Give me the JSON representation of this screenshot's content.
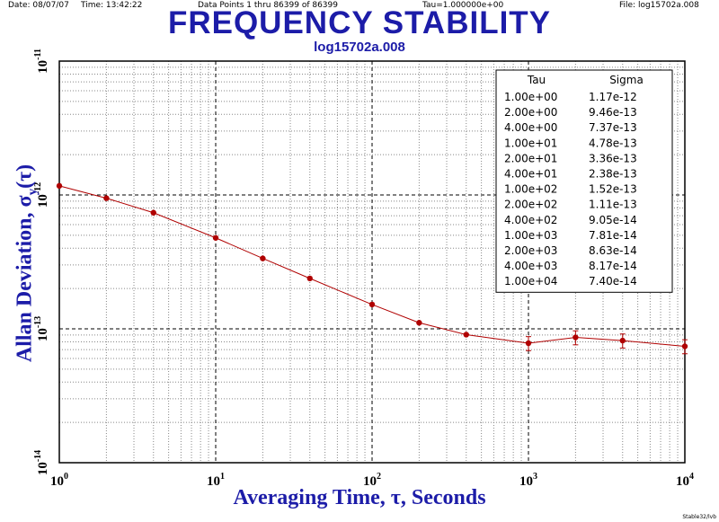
{
  "header": {
    "date": "Date: 08/07/07",
    "time": "Time: 13:42:22",
    "points": "Data Points 1 thru 86399 of 86399",
    "tau": "Tau=1.000000e+00",
    "file": "File: log15702a.008"
  },
  "footer": "Stable32/lvb",
  "chart_data": {
    "type": "scatter",
    "title": "FREQUENCY STABILITY",
    "subtitle": "log15702a.008",
    "xlabel": "Averaging Time, τ, Seconds",
    "ylabel": "Allan Deviation, σ",
    "ylabel_sub": "y",
    "ylabel_tail": "(τ)",
    "x_scale": "log",
    "y_scale": "log",
    "xlim": [
      1,
      10000
    ],
    "ylim": [
      1e-14,
      1e-11
    ],
    "grid": true,
    "legend_position": "top-right",
    "x_ticks": [
      {
        "base": "10",
        "exp": "0"
      },
      {
        "base": "10",
        "exp": "1"
      },
      {
        "base": "10",
        "exp": "2"
      },
      {
        "base": "10",
        "exp": "3"
      },
      {
        "base": "10",
        "exp": "4"
      }
    ],
    "y_ticks": [
      {
        "base": "10",
        "exp": "-14"
      },
      {
        "base": "10",
        "exp": "-13"
      },
      {
        "base": "10",
        "exp": "-12"
      },
      {
        "base": "10",
        "exp": "-11"
      }
    ],
    "series": [
      {
        "color": "#b00000",
        "x": [
          1,
          2,
          4,
          10,
          20,
          40,
          100,
          200,
          400,
          1000,
          2000,
          4000,
          10000
        ],
        "y": [
          1.17e-12,
          9.46e-13,
          7.37e-13,
          4.78e-13,
          3.36e-13,
          2.38e-13,
          1.52e-13,
          1.11e-13,
          9.05e-14,
          7.81e-14,
          8.63e-14,
          8.17e-14,
          7.4e-14
        ]
      }
    ],
    "table": {
      "headers": [
        "Tau",
        "Sigma"
      ],
      "rows": [
        [
          "1.00e+00",
          "1.17e-12"
        ],
        [
          "2.00e+00",
          "9.46e-13"
        ],
        [
          "4.00e+00",
          "7.37e-13"
        ],
        [
          "1.00e+01",
          "4.78e-13"
        ],
        [
          "2.00e+01",
          "3.36e-13"
        ],
        [
          "4.00e+01",
          "2.38e-13"
        ],
        [
          "1.00e+02",
          "1.52e-13"
        ],
        [
          "2.00e+02",
          "1.11e-13"
        ],
        [
          "4.00e+02",
          "9.05e-14"
        ],
        [
          "1.00e+03",
          "7.81e-14"
        ],
        [
          "2.00e+03",
          "8.63e-14"
        ],
        [
          "4.00e+03",
          "8.17e-14"
        ],
        [
          "1.00e+04",
          "7.40e-14"
        ]
      ]
    }
  }
}
